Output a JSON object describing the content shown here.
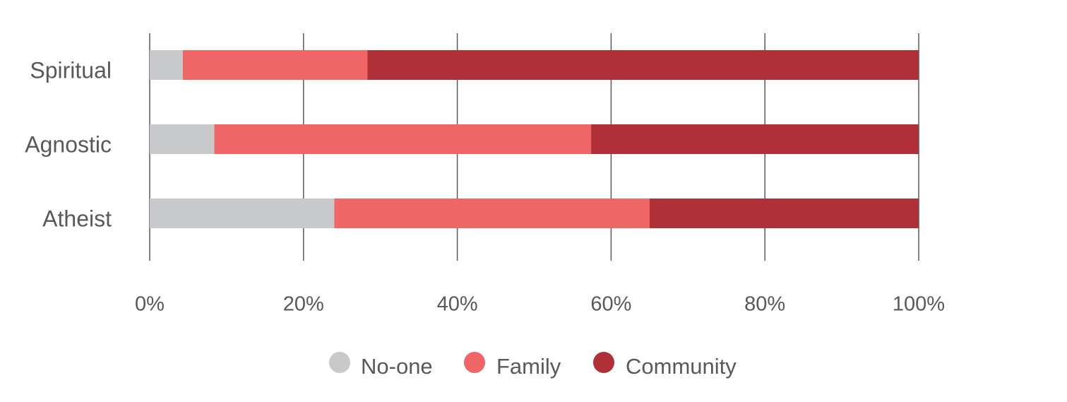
{
  "chart_data": {
    "type": "bar",
    "orientation": "horizontal",
    "stacked": true,
    "normalized": true,
    "categories": [
      "Spiritual",
      "Agnostic",
      "Atheist"
    ],
    "series": [
      {
        "name": "No-one",
        "color": "#c8c9cb",
        "values": [
          4.3,
          8.4,
          24
        ]
      },
      {
        "name": "Family",
        "color": "#f06566",
        "values": [
          24,
          49,
          41
        ]
      },
      {
        "name": "Community",
        "color": "#b03037",
        "values": [
          71.7,
          42.6,
          35
        ]
      }
    ],
    "xlim": [
      0,
      100
    ],
    "x_ticks": [
      "0%",
      "20%",
      "40%",
      "60%",
      "80%",
      "100%"
    ],
    "grid": true,
    "legend_position": "bottom-center",
    "title": "",
    "xlabel": "",
    "ylabel": ""
  }
}
